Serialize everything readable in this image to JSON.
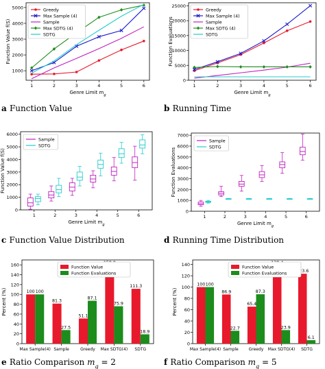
{
  "chart_data": [
    {
      "type": "line",
      "caption_letter": "a",
      "caption_text": "Function Value",
      "xlabel": "Genre Limit m_g",
      "ylabel": "Function Value f(S)",
      "x": [
        1,
        2,
        3,
        4,
        5,
        6
      ],
      "xlim": [
        0.75,
        6.25
      ],
      "ylim": [
        400,
        5300
      ],
      "yticks": [
        1000,
        2000,
        3000,
        4000,
        5000
      ],
      "legend_position": "top-left",
      "series": [
        {
          "name": "Greedy",
          "color": "#e8192c",
          "marker": "dot",
          "values": [
            780,
            800,
            920,
            1650,
            2320,
            2880
          ]
        },
        {
          "name": "Max Sample (4)",
          "color": "#1a1acc",
          "marker": "x",
          "values": [
            1000,
            1520,
            2550,
            3150,
            3550,
            4950
          ]
        },
        {
          "name": "Sample",
          "color": "#c020c0",
          "marker": "none",
          "values": [
            500,
            1180,
            1780,
            2400,
            3050,
            3780
          ]
        },
        {
          "name": "Max SDTG (4)",
          "color": "#1c8c1c",
          "marker": "diamond",
          "values": [
            1180,
            2380,
            3400,
            4380,
            4850,
            5150
          ]
        },
        {
          "name": "SDTG",
          "color": "#22cccc",
          "marker": "none",
          "values": [
            850,
            1620,
            2650,
            3560,
            4450,
            5200
          ]
        }
      ]
    },
    {
      "type": "line",
      "caption_letter": "b",
      "caption_text": "Running Time",
      "xlabel": "Genre Limit m_g",
      "ylabel": "Function Evaluations",
      "x": [
        1,
        2,
        3,
        4,
        5,
        6
      ],
      "xlim": [
        0.75,
        6.25
      ],
      "ylim": [
        0,
        26000
      ],
      "yticks": [
        0,
        5000,
        10000,
        15000,
        20000,
        25000
      ],
      "legend_position": "top-left",
      "series": [
        {
          "name": "Greedy",
          "color": "#e8192c",
          "marker": "dot",
          "values": [
            3200,
            5800,
            8600,
            12500,
            16600,
            19700
          ]
        },
        {
          "name": "Max Sample (4)",
          "color": "#1a1acc",
          "marker": "x",
          "values": [
            3600,
            6200,
            9000,
            13200,
            18800,
            25000
          ]
        },
        {
          "name": "Sample",
          "color": "#c020c0",
          "marker": "none",
          "values": [
            700,
            1600,
            2500,
            3400,
            4400,
            5700
          ]
        },
        {
          "name": "Max SDTG (4)",
          "color": "#1c8c1c",
          "marker": "diamond",
          "values": [
            4300,
            4600,
            4500,
            4500,
            4500,
            4500
          ]
        },
        {
          "name": "SDTG",
          "color": "#22cccc",
          "marker": "none",
          "values": [
            1150,
            1150,
            1150,
            1150,
            1150,
            1150
          ]
        }
      ]
    },
    {
      "type": "box",
      "caption_letter": "c",
      "caption_text": "Function Value Distribution",
      "xlabel": "Genre Limit m_g",
      "ylabel": "Function Value f(S)",
      "categories": [
        1,
        2,
        3,
        4,
        5,
        6
      ],
      "ylim": [
        0,
        6200
      ],
      "yticks": [
        0,
        1000,
        2000,
        3000,
        4000,
        5000,
        6000
      ],
      "legend_position": "top-left",
      "series": [
        {
          "name": "Sample",
          "color": "#c020c0",
          "boxes": [
            {
              "min": 50,
              "q1": 300,
              "median": 560,
              "q3": 950,
              "max": 1250
            },
            {
              "min": 700,
              "q1": 950,
              "median": 1180,
              "q3": 1450,
              "max": 1900
            },
            {
              "min": 1150,
              "q1": 1500,
              "median": 1800,
              "q3": 2150,
              "max": 2500
            },
            {
              "min": 1750,
              "q1": 2200,
              "median": 2450,
              "q3": 2750,
              "max": 3100
            },
            {
              "min": 2300,
              "q1": 2750,
              "median": 3050,
              "q3": 3400,
              "max": 4150
            },
            {
              "min": 2350,
              "q1": 3350,
              "median": 3750,
              "q3": 4200,
              "max": 5050
            }
          ]
        },
        {
          "name": "SDTG",
          "color": "#22cccc",
          "boxes": [
            {
              "min": 400,
              "q1": 650,
              "median": 900,
              "q3": 1050,
              "max": 1250
            },
            {
              "min": 1050,
              "q1": 1350,
              "median": 1600,
              "q3": 1950,
              "max": 2500
            },
            {
              "min": 1900,
              "q1": 2350,
              "median": 2600,
              "q3": 3000,
              "max": 3450
            },
            {
              "min": 2700,
              "q1": 3300,
              "median": 3600,
              "q3": 3950,
              "max": 4500
            },
            {
              "min": 3700,
              "q1": 4150,
              "median": 4450,
              "q3": 4850,
              "max": 5350
            },
            {
              "min": 4450,
              "q1": 4900,
              "median": 5150,
              "q3": 5550,
              "max": 5950
            }
          ]
        }
      ]
    },
    {
      "type": "box",
      "caption_letter": "d",
      "caption_text": "Running Time Distribution",
      "xlabel": "Genre Limit m_g",
      "ylabel": "Function Evaluations",
      "categories": [
        1,
        2,
        3,
        4,
        5,
        6
      ],
      "ylim": [
        0,
        7200
      ],
      "yticks": [
        0,
        1000,
        2000,
        3000,
        4000,
        5000,
        6000,
        7000
      ],
      "legend_position": "top-left",
      "series": [
        {
          "name": "Sample",
          "color": "#c020c0",
          "boxes": [
            {
              "min": 450,
              "q1": 600,
              "median": 700,
              "q3": 850,
              "max": 1000
            },
            {
              "min": 1350,
              "q1": 1500,
              "median": 1650,
              "q3": 1800,
              "max": 2300
            },
            {
              "min": 1850,
              "q1": 2300,
              "median": 2500,
              "q3": 2750,
              "max": 3300
            },
            {
              "min": 2750,
              "q1": 3100,
              "median": 3350,
              "q3": 3650,
              "max": 4200
            },
            {
              "min": 3500,
              "q1": 4000,
              "median": 4300,
              "q3": 4550,
              "max": 5400
            },
            {
              "min": 4700,
              "q1": 5200,
              "median": 5500,
              "q3": 5900,
              "max": 7100
            }
          ]
        },
        {
          "name": "SDTG",
          "color": "#22cccc",
          "boxes": [
            {
              "min": 750,
              "q1": 820,
              "median": 870,
              "q3": 920,
              "max": 1000
            },
            {
              "min": 1100,
              "q1": 1120,
              "median": 1140,
              "q3": 1160,
              "max": 1180
            },
            {
              "min": 1100,
              "q1": 1120,
              "median": 1140,
              "q3": 1160,
              "max": 1180
            },
            {
              "min": 1100,
              "q1": 1120,
              "median": 1140,
              "q3": 1160,
              "max": 1180
            },
            {
              "min": 1100,
              "q1": 1120,
              "median": 1140,
              "q3": 1160,
              "max": 1180
            },
            {
              "min": 1100,
              "q1": 1120,
              "median": 1140,
              "q3": 1160,
              "max": 1180
            }
          ]
        }
      ]
    },
    {
      "type": "bar",
      "caption_letter": "e",
      "caption_text": "Ratio Comparison m_g = 2",
      "ylabel": "Percent (%)",
      "categories": [
        "Max Sample(4)",
        "Sample",
        "Greedy",
        "Max SDTG(4)",
        "SDTG"
      ],
      "ylim": [
        0,
        170
      ],
      "yticks": [
        0,
        20,
        40,
        60,
        80,
        100,
        120,
        140,
        160
      ],
      "legend_position": "top-center",
      "series": [
        {
          "name": "Function Value",
          "color": "#e8192c",
          "values": [
            100,
            81.3,
            51.1,
            158.9,
            111.3
          ],
          "labels": [
            "100",
            "81.3",
            "51.1",
            "158.9",
            "111.3"
          ]
        },
        {
          "name": "Function Evaluations",
          "color": "#1c8c1c",
          "values": [
            100,
            27.5,
            87.1,
            75.9,
            18.9
          ],
          "labels": [
            "100",
            "27.5",
            "87.1",
            "75.9",
            "18.9"
          ]
        }
      ]
    },
    {
      "type": "bar",
      "caption_letter": "f",
      "caption_text": "Ratio Comparison m_g = 5",
      "ylabel": "Percent (%)",
      "categories": [
        "Max Sample(4)",
        "Sample",
        "Greedy",
        "Max SDTG(4)",
        "SDTG"
      ],
      "ylim": [
        0,
        148
      ],
      "yticks": [
        0,
        20,
        40,
        60,
        80,
        100,
        120,
        140
      ],
      "legend_position": "top-center",
      "series": [
        {
          "name": "Function Value",
          "color": "#e8192c",
          "values": [
            100,
            86.9,
            65.4,
            138.4,
            123.6
          ],
          "labels": [
            "100",
            "86.9",
            "65.4",
            "138.4",
            "123.6"
          ]
        },
        {
          "name": "Function Evaluations",
          "color": "#1c8c1c",
          "values": [
            100,
            22.7,
            87.3,
            23.9,
            6.1
          ],
          "labels": [
            "100",
            "22.7",
            "87.3",
            "23.9",
            "6.1"
          ]
        }
      ]
    }
  ]
}
